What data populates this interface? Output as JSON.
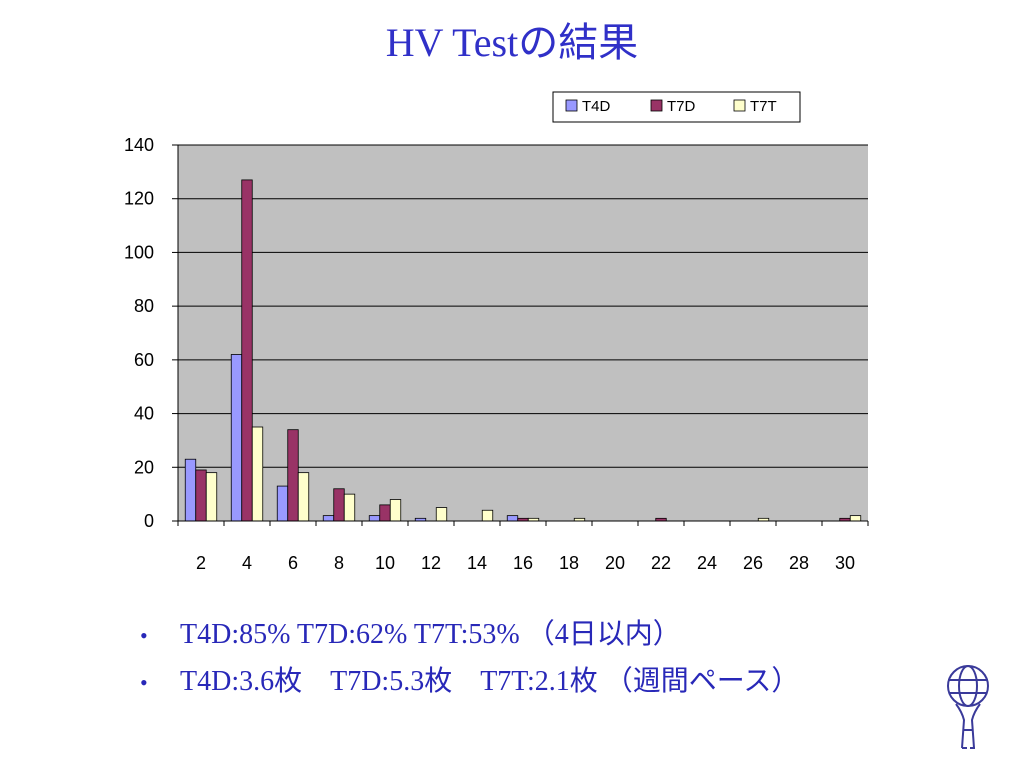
{
  "title": "HV Testの結果",
  "bullets": [
    "T4D:85% T7D:62% T7T:53% （4日以内）",
    "T4D:3.6枚　T7D:5.3枚　T7T:2.1枚 （週間ペース）"
  ],
  "colors": {
    "title": "#3030c8",
    "bullet_text": "#2828b8",
    "plot_bg": "#c0c0c0",
    "T4D": "#9999ff",
    "T7D": "#993366",
    "T7T": "#ffffcc"
  },
  "chart_data": {
    "type": "bar",
    "title": "",
    "xlabel": "",
    "ylabel": "",
    "categories": [
      "2",
      "4",
      "6",
      "8",
      "10",
      "12",
      "14",
      "16",
      "18",
      "20",
      "22",
      "24",
      "26",
      "28",
      "30"
    ],
    "ylim": [
      0,
      140
    ],
    "yticks": [
      0,
      20,
      40,
      60,
      80,
      100,
      120,
      140
    ],
    "grid": true,
    "legend_position": "top-right",
    "series": [
      {
        "name": "T4D",
        "values": [
          23,
          62,
          13,
          2,
          2,
          1,
          0,
          2,
          0,
          0,
          0,
          0,
          0,
          0,
          0
        ]
      },
      {
        "name": "T7D",
        "values": [
          19,
          127,
          34,
          12,
          6,
          0,
          0,
          1,
          0,
          0,
          1,
          0,
          0,
          0,
          1
        ]
      },
      {
        "name": "T7T",
        "values": [
          18,
          35,
          18,
          10,
          8,
          5,
          4,
          1,
          1,
          0,
          0,
          0,
          1,
          0,
          2
        ]
      }
    ]
  }
}
